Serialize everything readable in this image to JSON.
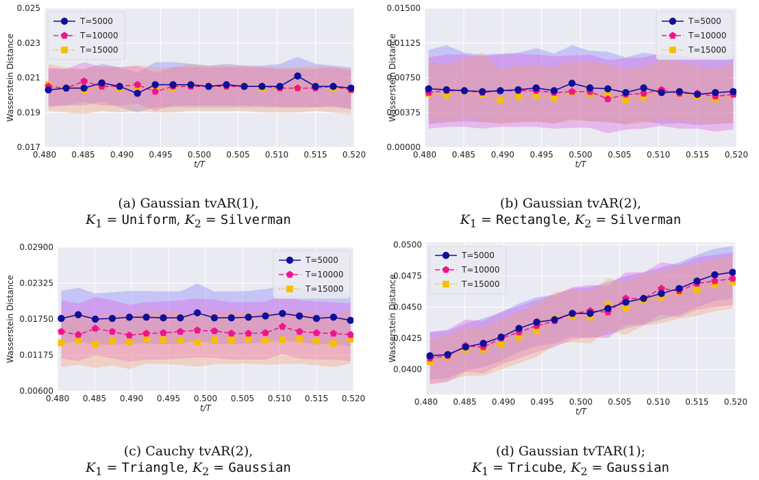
{
  "chart_data": [
    {
      "id": "a",
      "type": "line",
      "x": [
        0.4805,
        0.4828,
        0.4851,
        0.4874,
        0.4897,
        0.492,
        0.4943,
        0.4966,
        0.4989,
        0.5012,
        0.5035,
        0.5058,
        0.5081,
        0.5104,
        0.5127,
        0.515,
        0.5173,
        0.5196
      ],
      "xlabel": "t/T",
      "ylabel": "Wasserstein Distance",
      "xlim": [
        0.48,
        0.52
      ],
      "ylim": [
        0.017,
        0.025
      ],
      "xticks": [
        "0.480",
        "0.485",
        "0.490",
        "0.495",
        "0.500",
        "0.505",
        "0.510",
        "0.515",
        "0.520"
      ],
      "yticks": [
        "0.017",
        "0.019",
        "0.021",
        "0.023",
        "0.025"
      ],
      "legend_position": "top-left",
      "series": [
        {
          "name": "T=5000",
          "values": [
            0.0203,
            0.0204,
            0.0204,
            0.0207,
            0.0205,
            0.0201,
            0.0206,
            0.0206,
            0.0206,
            0.0205,
            0.0206,
            0.0205,
            0.0205,
            0.0205,
            0.0211,
            0.0205,
            0.0205,
            0.0204
          ],
          "lower": [
            0.0193,
            0.0194,
            0.0194,
            0.0196,
            0.0193,
            0.019,
            0.0193,
            0.0193,
            0.0193,
            0.0193,
            0.0193,
            0.0193,
            0.0193,
            0.0193,
            0.0193,
            0.0193,
            0.0193,
            0.0192
          ],
          "upper": [
            0.0215,
            0.0215,
            0.0215,
            0.0218,
            0.0216,
            0.0213,
            0.0219,
            0.0219,
            0.0218,
            0.0217,
            0.0218,
            0.0217,
            0.0217,
            0.0218,
            0.0222,
            0.0218,
            0.0217,
            0.0216
          ]
        },
        {
          "name": "T=10000",
          "values": [
            0.0205,
            0.0204,
            0.0208,
            0.0205,
            0.0205,
            0.0206,
            0.0202,
            0.0205,
            0.0205,
            0.0205,
            0.0205,
            0.0205,
            0.0205,
            0.0204,
            0.0204,
            0.0204,
            0.0205,
            0.0203
          ],
          "lower": [
            0.0194,
            0.0194,
            0.0196,
            0.0194,
            0.0194,
            0.0195,
            0.0191,
            0.0194,
            0.0194,
            0.0194,
            0.0194,
            0.0194,
            0.0194,
            0.0193,
            0.0193,
            0.0193,
            0.0194,
            0.0192
          ],
          "upper": [
            0.0216,
            0.0215,
            0.0219,
            0.0216,
            0.0216,
            0.0217,
            0.0213,
            0.0216,
            0.0216,
            0.0216,
            0.0216,
            0.0216,
            0.0216,
            0.0215,
            0.0215,
            0.0215,
            0.0216,
            0.0214
          ]
        },
        {
          "name": "T=15000",
          "values": [
            0.0206,
            0.0204,
            0.0203,
            0.0205,
            0.0204,
            0.0205,
            0.0204,
            0.0204,
            0.0206,
            0.0205,
            0.0205,
            0.0205,
            0.0204,
            0.0204,
            0.0204,
            0.0205,
            0.0204,
            0.0203
          ],
          "lower": [
            0.0191,
            0.019,
            0.0189,
            0.0191,
            0.019,
            0.0191,
            0.019,
            0.019,
            0.0191,
            0.0191,
            0.0191,
            0.0191,
            0.019,
            0.019,
            0.019,
            0.0191,
            0.019,
            0.0189
          ],
          "upper": [
            0.0218,
            0.0216,
            0.0215,
            0.0217,
            0.0216,
            0.0217,
            0.0216,
            0.0216,
            0.0218,
            0.0217,
            0.0217,
            0.0217,
            0.0216,
            0.0216,
            0.0216,
            0.0217,
            0.0216,
            0.0215
          ]
        }
      ]
    },
    {
      "id": "b",
      "type": "line",
      "x": [
        0.4805,
        0.4828,
        0.4851,
        0.4874,
        0.4897,
        0.492,
        0.4943,
        0.4966,
        0.4989,
        0.5012,
        0.5035,
        0.5058,
        0.5081,
        0.5104,
        0.5127,
        0.515,
        0.5173,
        0.5196
      ],
      "xlabel": "t/T",
      "ylabel": "Wasserstein Distance",
      "xlim": [
        0.48,
        0.52
      ],
      "ylim": [
        0.0,
        0.015
      ],
      "xticks": [
        "0.480",
        "0.485",
        "0.490",
        "0.495",
        "0.500",
        "0.505",
        "0.510",
        "0.515",
        "0.520"
      ],
      "yticks": [
        "0.00000",
        "0.00375",
        "0.00750",
        "0.01125",
        "0.01500"
      ],
      "legend_position": "top-right",
      "series": [
        {
          "name": "T=5000",
          "values": [
            0.0063,
            0.0062,
            0.0061,
            0.006,
            0.0061,
            0.0062,
            0.0064,
            0.0061,
            0.0069,
            0.0064,
            0.0063,
            0.0059,
            0.0064,
            0.0059,
            0.006,
            0.0057,
            0.0059,
            0.006
          ],
          "lower": [
            0.0025,
            0.0027,
            0.0028,
            0.0027,
            0.0026,
            0.0027,
            0.0028,
            0.0026,
            0.003,
            0.0028,
            0.0027,
            0.0025,
            0.0028,
            0.0025,
            0.0026,
            0.0024,
            0.0025,
            0.0026
          ],
          "upper": [
            0.0105,
            0.011,
            0.0102,
            0.01,
            0.0101,
            0.0102,
            0.0107,
            0.0101,
            0.011,
            0.0104,
            0.0103,
            0.0097,
            0.0102,
            0.0099,
            0.01,
            0.0096,
            0.0098,
            0.0099
          ]
        },
        {
          "name": "T=10000",
          "values": [
            0.0059,
            0.0061,
            0.0061,
            0.0059,
            0.0061,
            0.0061,
            0.0061,
            0.0059,
            0.006,
            0.006,
            0.0052,
            0.0057,
            0.0058,
            0.0062,
            0.0058,
            0.0058,
            0.0055,
            0.0057
          ],
          "lower": [
            0.002,
            0.0022,
            0.0022,
            0.002,
            0.0022,
            0.0022,
            0.0022,
            0.002,
            0.0021,
            0.0021,
            0.0015,
            0.0019,
            0.002,
            0.0023,
            0.002,
            0.002,
            0.0017,
            0.0019
          ],
          "upper": [
            0.0097,
            0.01,
            0.01,
            0.0098,
            0.01,
            0.0101,
            0.01,
            0.0098,
            0.0099,
            0.01,
            0.0094,
            0.0096,
            0.0097,
            0.0101,
            0.0098,
            0.0097,
            0.0094,
            0.0096
          ]
        },
        {
          "name": "T=15000",
          "values": [
            0.0058,
            0.0056,
            0.0061,
            0.0057,
            0.0051,
            0.0055,
            0.0056,
            0.0053,
            0.0059,
            0.0058,
            0.0057,
            0.0051,
            0.0054,
            0.006,
            0.0058,
            0.0055,
            0.0052,
            0.0057
          ],
          "lower": [
            0.0028,
            0.0027,
            0.003,
            0.0028,
            0.0024,
            0.0027,
            0.0027,
            0.0025,
            0.0029,
            0.0028,
            0.0028,
            0.0024,
            0.0026,
            0.0029,
            0.0028,
            0.0026,
            0.0025,
            0.0027
          ],
          "upper": [
            0.0092,
            0.0089,
            0.0095,
            0.0102,
            0.0084,
            0.0088,
            0.0089,
            0.0086,
            0.0093,
            0.0092,
            0.009,
            0.0084,
            0.0087,
            0.0094,
            0.0092,
            0.0088,
            0.0085,
            0.009
          ]
        }
      ]
    },
    {
      "id": "c",
      "type": "line",
      "x": [
        0.4805,
        0.4828,
        0.4851,
        0.4874,
        0.4897,
        0.492,
        0.4943,
        0.4966,
        0.4989,
        0.5012,
        0.5035,
        0.5058,
        0.5081,
        0.5104,
        0.5127,
        0.515,
        0.5173,
        0.5196
      ],
      "xlabel": "t/T",
      "ylabel": "Wasserstein Distance",
      "xlim": [
        0.48,
        0.52
      ],
      "ylim": [
        0.006,
        0.029
      ],
      "xticks": [
        "0.480",
        "0.485",
        "0.490",
        "0.495",
        "0.500",
        "0.505",
        "0.510",
        "0.515",
        "0.520"
      ],
      "yticks": [
        "0.00600",
        "0.01175",
        "0.01750",
        "0.02325",
        "0.02900"
      ],
      "legend_position": "top-right",
      "series": [
        {
          "name": "T=5000",
          "values": [
            0.0176,
            0.0182,
            0.0175,
            0.0176,
            0.0178,
            0.0178,
            0.0177,
            0.0177,
            0.0185,
            0.0177,
            0.0177,
            0.0178,
            0.018,
            0.0184,
            0.018,
            0.0176,
            0.0178,
            0.0173
          ],
          "lower": [
            0.0135,
            0.014,
            0.0134,
            0.0134,
            0.0136,
            0.0136,
            0.0135,
            0.0135,
            0.0141,
            0.0135,
            0.0135,
            0.0136,
            0.0138,
            0.0141,
            0.0138,
            0.0134,
            0.0136,
            0.0131
          ],
          "upper": [
            0.022,
            0.0225,
            0.0216,
            0.0218,
            0.022,
            0.022,
            0.0219,
            0.0219,
            0.0232,
            0.0219,
            0.0219,
            0.022,
            0.0223,
            0.0229,
            0.0224,
            0.0218,
            0.022,
            0.0215
          ]
        },
        {
          "name": "T=10000",
          "values": [
            0.0155,
            0.015,
            0.016,
            0.0155,
            0.0149,
            0.0152,
            0.0153,
            0.0155,
            0.0157,
            0.0156,
            0.0152,
            0.0152,
            0.0153,
            0.0163,
            0.0155,
            0.0153,
            0.0152,
            0.015
          ],
          "lower": [
            0.0112,
            0.0108,
            0.0117,
            0.0112,
            0.0107,
            0.011,
            0.011,
            0.0112,
            0.0114,
            0.0113,
            0.011,
            0.011,
            0.011,
            0.0119,
            0.0112,
            0.011,
            0.011,
            0.0108
          ],
          "upper": [
            0.0205,
            0.02,
            0.021,
            0.0205,
            0.0198,
            0.0202,
            0.0203,
            0.0205,
            0.0208,
            0.0206,
            0.0202,
            0.0202,
            0.0203,
            0.0213,
            0.0205,
            0.0203,
            0.0202,
            0.02
          ]
        },
        {
          "name": "T=15000",
          "values": [
            0.0137,
            0.0141,
            0.0135,
            0.014,
            0.0138,
            0.0143,
            0.0142,
            0.0141,
            0.0138,
            0.0142,
            0.0142,
            0.0143,
            0.0141,
            0.0142,
            0.0143,
            0.014,
            0.0136,
            0.0143
          ],
          "lower": [
            0.0098,
            0.0102,
            0.0097,
            0.0101,
            0.0095,
            0.0104,
            0.0103,
            0.0102,
            0.0099,
            0.0103,
            0.0103,
            0.0104,
            0.0102,
            0.0103,
            0.0104,
            0.0101,
            0.0098,
            0.0104
          ],
          "upper": [
            0.0182,
            0.0186,
            0.018,
            0.0185,
            0.0183,
            0.0188,
            0.0187,
            0.0186,
            0.0183,
            0.0187,
            0.0187,
            0.0188,
            0.0186,
            0.0187,
            0.0188,
            0.0185,
            0.0181,
            0.0188
          ]
        }
      ]
    },
    {
      "id": "d",
      "type": "line",
      "x": [
        0.4805,
        0.4828,
        0.4851,
        0.4874,
        0.4897,
        0.492,
        0.4943,
        0.4966,
        0.4989,
        0.5012,
        0.5035,
        0.5058,
        0.5081,
        0.5104,
        0.5127,
        0.515,
        0.5173,
        0.5196
      ],
      "xlabel": "t/T",
      "ylabel": "Wasserstein Distance",
      "xlim": [
        0.48,
        0.52
      ],
      "ylim": [
        0.038,
        0.0502
      ],
      "xticks": [
        "0.480",
        "0.485",
        "0.490",
        "0.495",
        "0.500",
        "0.505",
        "0.510",
        "0.515",
        "0.520"
      ],
      "yticks": [
        "0.0400",
        "0.0425",
        "0.0450",
        "0.0475",
        "0.0500"
      ],
      "legend_position": "top-left",
      "series": [
        {
          "name": "T=5000",
          "values": [
            0.0411,
            0.0412,
            0.0418,
            0.0421,
            0.0426,
            0.0433,
            0.0438,
            0.044,
            0.0445,
            0.0445,
            0.0449,
            0.0454,
            0.0457,
            0.0461,
            0.0465,
            0.0471,
            0.0476,
            0.0478
          ],
          "lower": [
            0.0392,
            0.0393,
            0.0399,
            0.0402,
            0.0407,
            0.0414,
            0.0419,
            0.0421,
            0.0426,
            0.0425,
            0.0428,
            0.0433,
            0.0436,
            0.044,
            0.0444,
            0.045,
            0.0455,
            0.0457
          ],
          "upper": [
            0.043,
            0.0431,
            0.0437,
            0.0441,
            0.0446,
            0.0453,
            0.0458,
            0.046,
            0.0465,
            0.0466,
            0.047,
            0.0475,
            0.0478,
            0.0482,
            0.0486,
            0.0492,
            0.0497,
            0.0499
          ]
        },
        {
          "name": "T=10000",
          "values": [
            0.0409,
            0.0411,
            0.0419,
            0.0418,
            0.0425,
            0.043,
            0.0435,
            0.0439,
            0.0445,
            0.0447,
            0.0446,
            0.0457,
            0.0457,
            0.0465,
            0.0463,
            0.0469,
            0.0471,
            0.0473
          ],
          "lower": [
            0.0388,
            0.039,
            0.0398,
            0.0397,
            0.0404,
            0.0409,
            0.0414,
            0.0418,
            0.0424,
            0.0426,
            0.0425,
            0.0436,
            0.0436,
            0.0444,
            0.0442,
            0.0448,
            0.045,
            0.0452
          ],
          "upper": [
            0.043,
            0.0432,
            0.044,
            0.0439,
            0.0446,
            0.0451,
            0.0456,
            0.046,
            0.0466,
            0.0468,
            0.0467,
            0.0478,
            0.0478,
            0.0486,
            0.0484,
            0.049,
            0.0492,
            0.0494
          ]
        },
        {
          "name": "T=15000",
          "values": [
            0.0406,
            0.041,
            0.0416,
            0.0416,
            0.042,
            0.0426,
            0.0431,
            0.0441,
            0.0443,
            0.0442,
            0.0452,
            0.0449,
            0.0456,
            0.0458,
            0.0462,
            0.0464,
            0.0468,
            0.047
          ],
          "lower": [
            0.0388,
            0.0391,
            0.0395,
            0.0395,
            0.04,
            0.0405,
            0.041,
            0.042,
            0.0422,
            0.0421,
            0.0431,
            0.0428,
            0.0435,
            0.0437,
            0.0441,
            0.0443,
            0.0447,
            0.0449
          ],
          "upper": [
            0.0424,
            0.0428,
            0.0434,
            0.0434,
            0.044,
            0.0446,
            0.0452,
            0.0462,
            0.0464,
            0.0463,
            0.0473,
            0.047,
            0.0477,
            0.0479,
            0.0483,
            0.0485,
            0.0489,
            0.0491
          ]
        }
      ]
    }
  ],
  "captions": [
    {
      "line1": "(a) Gaussian tvAR(1),",
      "k1": "Uniform",
      "k2": "Silverman"
    },
    {
      "line1": "(b) Gaussian tvAR(2),",
      "k1": "Rectangle",
      "k2": "Silverman"
    },
    {
      "line1": "(c) Cauchy tvAR(2),",
      "k1": "Triangle",
      "k2": "Gaussian"
    },
    {
      "line1": "(d) Gaussian tvTAR(1);",
      "k1": "Tricube",
      "k2": "Gaussian"
    }
  ],
  "caption_symbols": {
    "k1": "K",
    "k2": "K",
    "sub1": "1",
    "sub2": "2",
    "eq": " = ",
    "comma": ", "
  },
  "colors": {
    "plot_bg": "#EAEAF2",
    "grid": "#FFFFFF",
    "series": [
      "#0F0F9A",
      "#F0148C",
      "#F5C000"
    ],
    "bands": [
      "#7F7FFF",
      "#E05CE0",
      "#F5A070"
    ]
  }
}
